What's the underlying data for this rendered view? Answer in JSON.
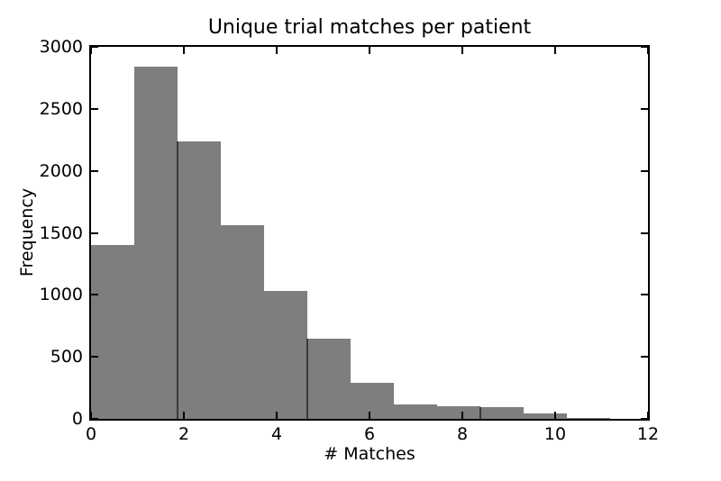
{
  "figure": {
    "title": "Unique trial matches per patient",
    "xlabel": "# Matches",
    "ylabel": "Frequency",
    "background_color": "#ffffff",
    "text_color": "#000000",
    "spine_color": "#000000"
  },
  "chart_data": {
    "type": "bar",
    "subtype": "histogram",
    "title": "Unique trial matches per patient",
    "xlabel": "# Matches",
    "ylabel": "Frequency",
    "bin_edges": [
      0,
      0.93,
      1.86,
      2.8,
      3.73,
      4.66,
      5.59,
      6.52,
      7.46,
      8.39,
      9.32,
      10.25,
      11.18
    ],
    "counts": [
      1400,
      2840,
      2240,
      1560,
      1030,
      650,
      290,
      120,
      105,
      95,
      45,
      10
    ],
    "xlim": [
      0,
      12
    ],
    "ylim": [
      0,
      3000
    ],
    "xticks": [
      0,
      2,
      4,
      6,
      8,
      10,
      12
    ],
    "yticks": [
      0,
      500,
      1000,
      1500,
      2000,
      2500,
      3000
    ],
    "grid": false,
    "legend": null,
    "bar_color": "#7e7e7e",
    "bin_edge_line_color": "#3a3a3a",
    "bin_edge_lines_at": [
      1.86,
      4.66,
      8.39
    ],
    "tick_direction": "in"
  }
}
